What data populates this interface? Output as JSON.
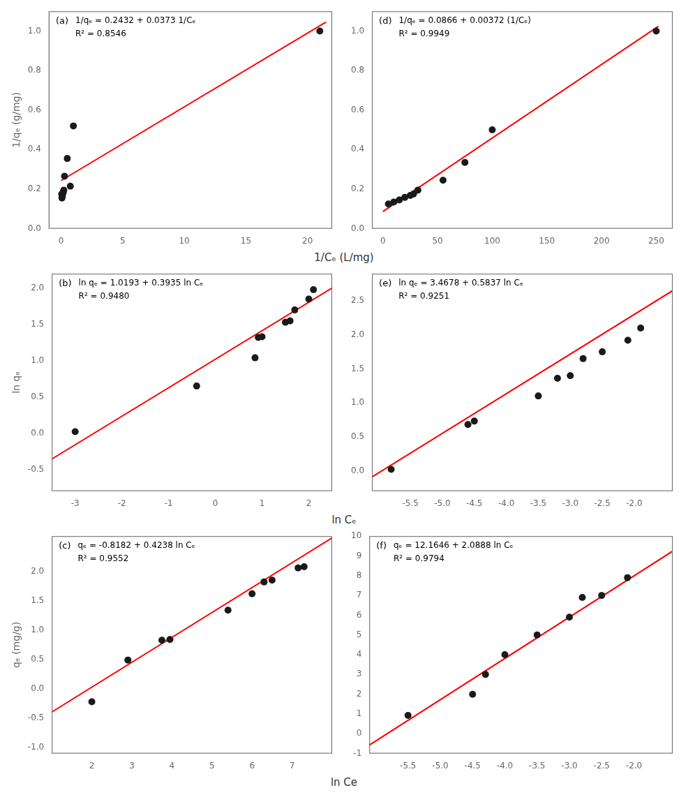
{
  "chart_data": [
    {
      "type": "scatter",
      "annotations": [
        "(a)",
        "1/qₑ = 0.2432 + 0.0373 1/Cₑ",
        "R² = 0.8546"
      ],
      "ylabel": "1/qₑ (g/mg)",
      "xlabel": "1/Cₑ (L/mg)",
      "xlim": [
        -1,
        22
      ],
      "ylim": [
        0.0,
        1.1
      ],
      "xticks": [
        0,
        5,
        10,
        15,
        20
      ],
      "yticks": [
        {
          "value": 0,
          "label": "0.0"
        },
        0.2,
        0.4,
        0.6,
        0.8,
        {
          "value": 1,
          "label": "1.0"
        }
      ],
      "grid": false,
      "series": [
        {
          "type": "scatter",
          "color": "#1a1a1a",
          "x": [
            0.05,
            0.07,
            0.1,
            0.13,
            0.18,
            0.22,
            0.28,
            0.5,
            0.75,
            1.0,
            21.0
          ],
          "values": [
            0.175,
            0.155,
            0.165,
            0.175,
            0.185,
            0.195,
            0.265,
            0.355,
            0.215,
            0.52,
            1.0
          ]
        },
        {
          "type": "line",
          "color": "red",
          "x": [
            0,
            21.5
          ],
          "values": [
            0.2432,
            1.04515
          ]
        }
      ]
    },
    {
      "type": "scatter",
      "annotations": [
        "(d)",
        "1/qₑ = 0.0866 + 0.00372 (1/Cₑ)",
        "R² = 0.9949"
      ],
      "xlim": [
        -10,
        265
      ],
      "ylim": [
        0.0,
        1.1
      ],
      "xticks": [
        0,
        50,
        100,
        150,
        200,
        250
      ],
      "yticks": [
        {
          "value": 0,
          "label": "0.0"
        },
        0.2,
        0.4,
        0.6,
        0.8,
        {
          "value": 1,
          "label": "1.0"
        }
      ],
      "grid": false,
      "series": [
        {
          "type": "scatter",
          "color": "#1a1a1a",
          "x": [
            5,
            10,
            15,
            20,
            25,
            28,
            32,
            55,
            75,
            100,
            250
          ],
          "values": [
            0.125,
            0.135,
            0.145,
            0.158,
            0.168,
            0.175,
            0.195,
            0.245,
            0.335,
            0.5,
            1.0
          ]
        },
        {
          "type": "line",
          "color": "red",
          "x": [
            0,
            252
          ],
          "values": [
            0.0866,
            1.02404
          ]
        }
      ]
    },
    {
      "type": "scatter",
      "annotations": [
        "(b)",
        "ln qₑ = 1.0193 + 0.3935 ln Cₑ",
        "R² = 0.9480"
      ],
      "ylabel": "ln qₑ",
      "xlabel": "ln Cₑ",
      "xlim": [
        -3.5,
        2.5
      ],
      "ylim": [
        -0.8,
        2.2
      ],
      "xticks": [
        -3,
        -2,
        -1,
        0,
        1,
        2
      ],
      "yticks": [
        -0.5,
        {
          "value": 0,
          "label": "0.0"
        },
        0.5,
        {
          "value": 1,
          "label": "1.0"
        },
        1.5,
        {
          "value": 2,
          "label": "2.0"
        }
      ],
      "grid": false,
      "series": [
        {
          "type": "scatter",
          "color": "#1a1a1a",
          "x": [
            -3.0,
            -0.4,
            0.85,
            0.92,
            1.0,
            1.5,
            1.6,
            1.7,
            2.0,
            2.1
          ],
          "values": [
            0.02,
            0.65,
            1.04,
            1.32,
            1.33,
            1.53,
            1.55,
            1.7,
            1.85,
            1.98
          ]
        },
        {
          "type": "line",
          "color": "red",
          "x": [
            -3.5,
            2.5
          ],
          "values": [
            -0.35795,
            2.00305
          ]
        }
      ]
    },
    {
      "type": "scatter",
      "annotations": [
        "(e)",
        "ln qₑ = 3.4678 + 0.5837 ln Cₑ",
        "R² = 0.9251"
      ],
      "xlim": [
        -6.1,
        -1.4
      ],
      "ylim": [
        -0.3,
        2.9
      ],
      "xticks": [
        -5.5,
        {
          "value": -5,
          "label": "-5.0"
        },
        -4.5,
        {
          "value": -4,
          "label": "-4.0"
        },
        -3.5,
        {
          "value": -3,
          "label": "-3.0"
        },
        -2.5,
        {
          "value": -2,
          "label": "-2.0"
        }
      ],
      "yticks": [
        {
          "value": 0,
          "label": "0.0"
        },
        0.5,
        {
          "value": 1,
          "label": "1.0"
        },
        1.5,
        {
          "value": 2,
          "label": "2.0"
        },
        2.5
      ],
      "grid": false,
      "series": [
        {
          "type": "scatter",
          "color": "#1a1a1a",
          "x": [
            -5.8,
            -4.6,
            -4.5,
            -3.5,
            -3.2,
            -3.0,
            -2.8,
            -2.5,
            -2.1,
            -1.9
          ],
          "values": [
            0.02,
            0.68,
            0.73,
            1.1,
            1.36,
            1.4,
            1.65,
            1.75,
            1.92,
            2.1
          ]
        },
        {
          "type": "line",
          "color": "red",
          "x": [
            -6.1,
            -1.4
          ],
          "values": [
            -0.09277,
            2.65062
          ]
        }
      ]
    },
    {
      "type": "scatter",
      "annotations": [
        "(c)",
        "qₑ = -0.8182 + 0.4238 ln Cₑ",
        "R² = 0.9552"
      ],
      "ylabel": "qₑ (mg/g)",
      "xlabel": "ln Ce",
      "xlim": [
        1.0,
        8.0
      ],
      "ylim": [
        -1.1,
        2.6
      ],
      "xticks": [
        2,
        3,
        4,
        5,
        6,
        7
      ],
      "yticks": [
        {
          "value": -1,
          "label": "-1.0"
        },
        -0.5,
        {
          "value": 0,
          "label": "0.0"
        },
        0.5,
        {
          "value": 1,
          "label": "1.0"
        },
        1.5,
        {
          "value": 2,
          "label": "2.0"
        }
      ],
      "grid": false,
      "series": [
        {
          "type": "scatter",
          "color": "#1a1a1a",
          "x": [
            2.0,
            2.9,
            3.75,
            3.95,
            5.4,
            6.0,
            6.3,
            6.5,
            7.15,
            7.3
          ],
          "values": [
            -0.22,
            0.49,
            0.83,
            0.84,
            1.34,
            1.62,
            1.82,
            1.85,
            2.06,
            2.08
          ]
        },
        {
          "type": "line",
          "color": "red",
          "x": [
            1.0,
            8.0
          ],
          "values": [
            -0.3944,
            2.5722
          ]
        }
      ]
    },
    {
      "type": "scatter",
      "annotations": [
        "(f)",
        "qₑ = 12.1646 + 2.0888 ln Cₑ",
        "R² = 0.9794"
      ],
      "xlim": [
        -6.1,
        -1.4
      ],
      "ylim": [
        -1,
        10
      ],
      "xticks": [
        -5.5,
        {
          "value": -5,
          "label": "-5.0"
        },
        -4.5,
        {
          "value": -4,
          "label": "-4.0"
        },
        -3.5,
        {
          "value": -3,
          "label": "-3.0"
        },
        -2.5,
        {
          "value": -2,
          "label": "-2.0"
        }
      ],
      "yticks": [
        -1,
        0,
        1,
        2,
        3,
        4,
        5,
        6,
        7,
        8,
        9,
        10
      ],
      "grid": false,
      "series": [
        {
          "type": "scatter",
          "color": "#1a1a1a",
          "x": [
            -5.5,
            -4.5,
            -4.3,
            -4.0,
            -3.5,
            -3.0,
            -2.8,
            -2.5,
            -2.1
          ],
          "values": [
            0.93,
            2.0,
            3.0,
            4.0,
            5.0,
            5.9,
            6.9,
            7.0,
            7.9
          ]
        },
        {
          "type": "line",
          "color": "red",
          "x": [
            -6.1,
            -1.4
          ],
          "values": [
            -0.57708,
            9.24028
          ]
        }
      ]
    }
  ]
}
